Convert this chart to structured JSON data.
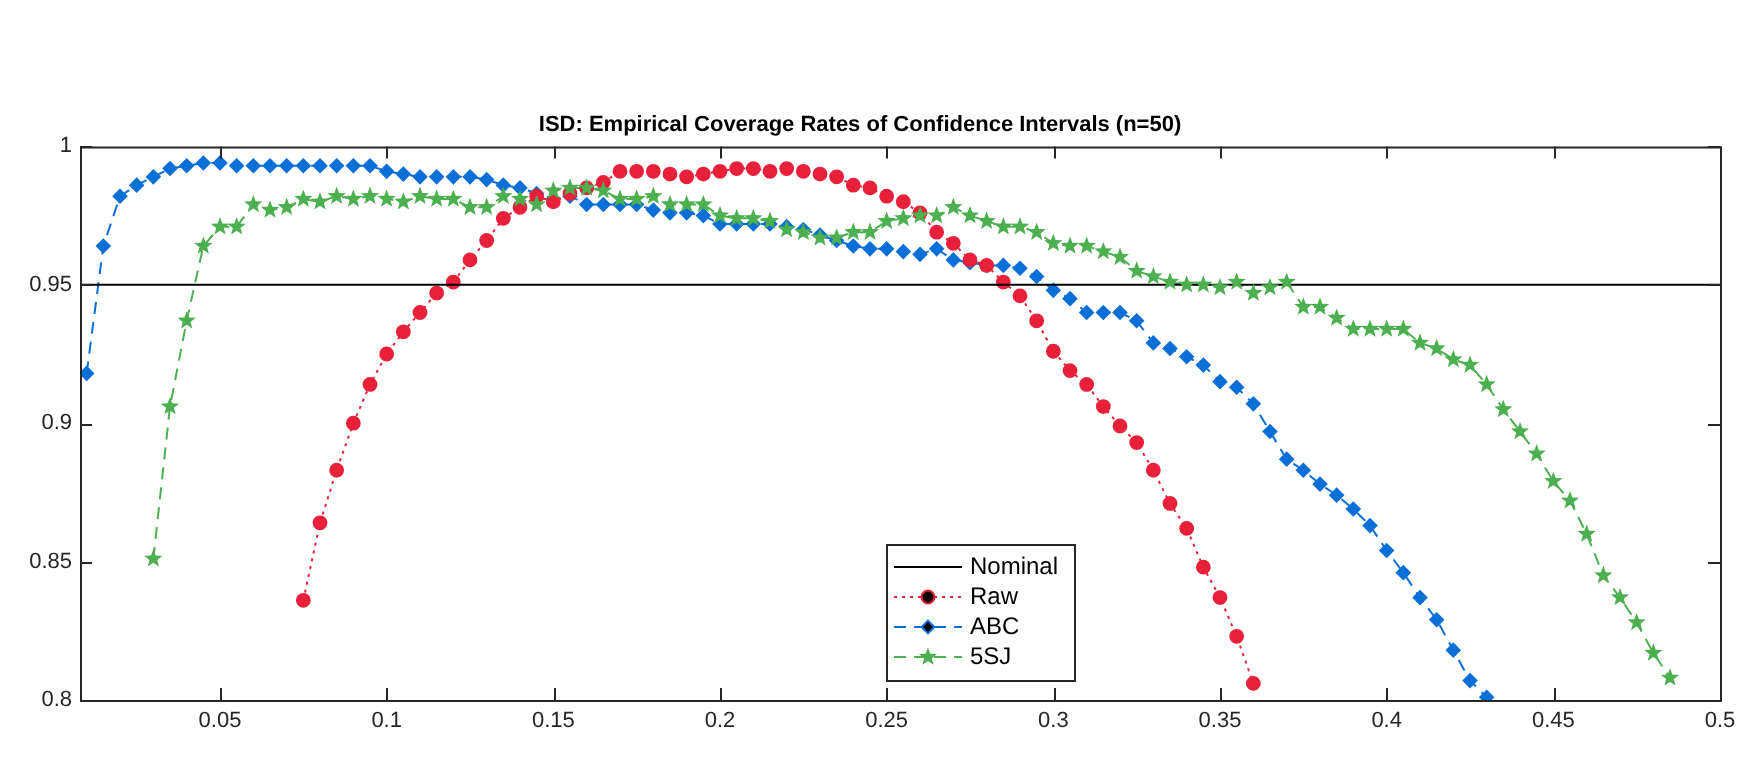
{
  "chart_data": {
    "type": "line",
    "title": "ISD: Empirical Coverage Rates of Confidence Intervals (n=50)",
    "xlim": [
      0.008,
      0.5
    ],
    "xticks": [
      0.05,
      0.1,
      0.15,
      0.2,
      0.25,
      0.3,
      0.35,
      0.4,
      0.45,
      0.5
    ],
    "ylim": [
      0.8,
      1
    ],
    "yticks": [
      0.8,
      0.85,
      0.9,
      0.95,
      1
    ],
    "grid": false,
    "legend": "bottom",
    "series": [
      {
        "name": "Nominal",
        "color": "#000000",
        "marker": "none",
        "line_style": "solid",
        "x": [
          0.008,
          0.5
        ],
        "values": [
          0.95,
          0.95
        ]
      },
      {
        "name": "Raw",
        "color": "#e8203a",
        "marker": "circle",
        "line_style": "dotted",
        "x": [
          0.075,
          0.08,
          0.085,
          0.09,
          0.095,
          0.1,
          0.105,
          0.11,
          0.115,
          0.12,
          0.125,
          0.13,
          0.135,
          0.14,
          0.145,
          0.15,
          0.155,
          0.16,
          0.165,
          0.17,
          0.175,
          0.18,
          0.185,
          0.19,
          0.195,
          0.2,
          0.205,
          0.21,
          0.215,
          0.22,
          0.225,
          0.23,
          0.235,
          0.24,
          0.245,
          0.25,
          0.255,
          0.26,
          0.265,
          0.27,
          0.275,
          0.28,
          0.285,
          0.29,
          0.295,
          0.3,
          0.305,
          0.31,
          0.315,
          0.32,
          0.325,
          0.33,
          0.335,
          0.34,
          0.345,
          0.35,
          0.355,
          0.36
        ],
        "values": [
          0.836,
          0.864,
          0.883,
          0.9,
          0.914,
          0.925,
          0.933,
          0.94,
          0.947,
          0.951,
          0.959,
          0.966,
          0.974,
          0.978,
          0.982,
          0.98,
          0.983,
          0.985,
          0.987,
          0.991,
          0.991,
          0.991,
          0.99,
          0.989,
          0.99,
          0.991,
          0.992,
          0.992,
          0.991,
          0.992,
          0.991,
          0.99,
          0.989,
          0.986,
          0.985,
          0.982,
          0.98,
          0.976,
          0.969,
          0.965,
          0.959,
          0.957,
          0.951,
          0.946,
          0.937,
          0.926,
          0.919,
          0.914,
          0.906,
          0.899,
          0.893,
          0.883,
          0.871,
          0.862,
          0.848,
          0.837,
          0.823,
          0.806
        ]
      },
      {
        "name": "ABC",
        "color": "#0a6fd6",
        "marker": "diamond",
        "line_style": "dashed",
        "x": [
          0.01,
          0.015,
          0.02,
          0.025,
          0.03,
          0.035,
          0.04,
          0.045,
          0.05,
          0.055,
          0.06,
          0.065,
          0.07,
          0.075,
          0.08,
          0.085,
          0.09,
          0.095,
          0.1,
          0.105,
          0.11,
          0.115,
          0.12,
          0.125,
          0.13,
          0.135,
          0.14,
          0.145,
          0.15,
          0.155,
          0.16,
          0.165,
          0.17,
          0.175,
          0.18,
          0.185,
          0.19,
          0.195,
          0.2,
          0.205,
          0.21,
          0.215,
          0.22,
          0.225,
          0.23,
          0.235,
          0.24,
          0.245,
          0.25,
          0.255,
          0.26,
          0.265,
          0.27,
          0.275,
          0.28,
          0.285,
          0.29,
          0.295,
          0.3,
          0.305,
          0.31,
          0.315,
          0.32,
          0.325,
          0.33,
          0.335,
          0.34,
          0.345,
          0.35,
          0.355,
          0.36,
          0.365,
          0.37,
          0.375,
          0.38,
          0.385,
          0.39,
          0.395,
          0.4,
          0.405,
          0.41,
          0.415,
          0.42,
          0.425,
          0.43
        ],
        "values": [
          0.918,
          0.964,
          0.982,
          0.986,
          0.989,
          0.992,
          0.993,
          0.994,
          0.994,
          0.993,
          0.993,
          0.993,
          0.993,
          0.993,
          0.993,
          0.993,
          0.993,
          0.993,
          0.991,
          0.99,
          0.989,
          0.989,
          0.989,
          0.989,
          0.988,
          0.986,
          0.985,
          0.983,
          0.981,
          0.982,
          0.979,
          0.979,
          0.979,
          0.979,
          0.977,
          0.976,
          0.976,
          0.975,
          0.972,
          0.972,
          0.972,
          0.972,
          0.971,
          0.97,
          0.968,
          0.966,
          0.964,
          0.963,
          0.963,
          0.962,
          0.961,
          0.963,
          0.959,
          0.958,
          0.957,
          0.957,
          0.956,
          0.953,
          0.948,
          0.945,
          0.94,
          0.94,
          0.94,
          0.937,
          0.929,
          0.927,
          0.924,
          0.921,
          0.915,
          0.913,
          0.907,
          0.897,
          0.887,
          0.883,
          0.878,
          0.874,
          0.869,
          0.863,
          0.854,
          0.846,
          0.837,
          0.829,
          0.818,
          0.807,
          0.801
        ]
      },
      {
        "name": "5SJ",
        "color": "#4caf50",
        "marker": "star",
        "line_style": "dashed",
        "x": [
          0.03,
          0.035,
          0.04,
          0.045,
          0.05,
          0.055,
          0.06,
          0.065,
          0.07,
          0.075,
          0.08,
          0.085,
          0.09,
          0.095,
          0.1,
          0.105,
          0.11,
          0.115,
          0.12,
          0.125,
          0.13,
          0.135,
          0.14,
          0.145,
          0.15,
          0.155,
          0.16,
          0.165,
          0.17,
          0.175,
          0.18,
          0.185,
          0.19,
          0.195,
          0.2,
          0.205,
          0.21,
          0.215,
          0.22,
          0.225,
          0.23,
          0.235,
          0.24,
          0.245,
          0.25,
          0.255,
          0.26,
          0.265,
          0.27,
          0.275,
          0.28,
          0.285,
          0.29,
          0.295,
          0.3,
          0.305,
          0.31,
          0.315,
          0.32,
          0.325,
          0.33,
          0.335,
          0.34,
          0.345,
          0.35,
          0.355,
          0.36,
          0.365,
          0.37,
          0.375,
          0.38,
          0.385,
          0.39,
          0.395,
          0.4,
          0.405,
          0.41,
          0.415,
          0.42,
          0.425,
          0.43,
          0.435,
          0.44,
          0.445,
          0.45,
          0.455,
          0.46,
          0.465,
          0.47,
          0.475,
          0.48,
          0.485
        ],
        "values": [
          0.851,
          0.906,
          0.937,
          0.964,
          0.971,
          0.971,
          0.979,
          0.977,
          0.978,
          0.981,
          0.98,
          0.982,
          0.981,
          0.982,
          0.981,
          0.98,
          0.982,
          0.981,
          0.981,
          0.978,
          0.978,
          0.982,
          0.981,
          0.979,
          0.984,
          0.985,
          0.985,
          0.984,
          0.981,
          0.981,
          0.982,
          0.979,
          0.979,
          0.979,
          0.975,
          0.974,
          0.974,
          0.973,
          0.97,
          0.969,
          0.967,
          0.967,
          0.969,
          0.969,
          0.973,
          0.974,
          0.975,
          0.975,
          0.978,
          0.975,
          0.973,
          0.971,
          0.971,
          0.969,
          0.965,
          0.964,
          0.964,
          0.962,
          0.96,
          0.955,
          0.953,
          0.951,
          0.95,
          0.95,
          0.949,
          0.951,
          0.947,
          0.949,
          0.951,
          0.942,
          0.942,
          0.938,
          0.934,
          0.934,
          0.934,
          0.934,
          0.929,
          0.927,
          0.923,
          0.921,
          0.914,
          0.905,
          0.897,
          0.889,
          0.879,
          0.872,
          0.86,
          0.845,
          0.837,
          0.828,
          0.817,
          0.808
        ]
      }
    ]
  }
}
